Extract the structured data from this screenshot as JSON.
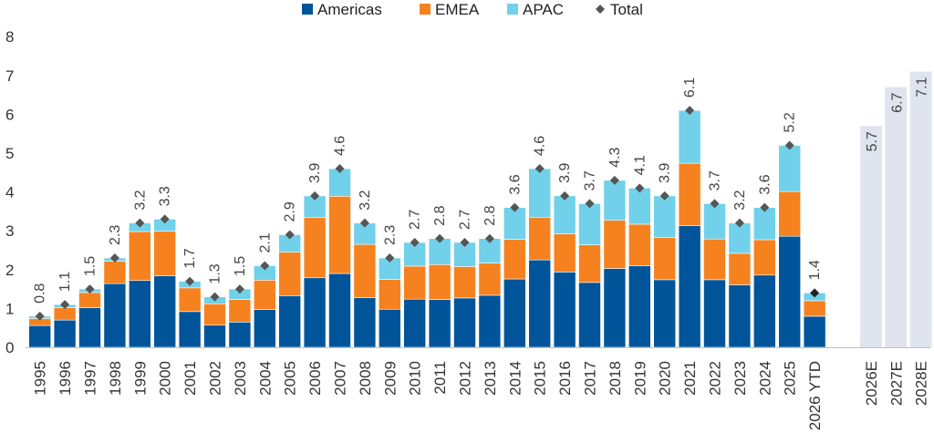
{
  "chart_data": {
    "type": "bar",
    "stacked": true,
    "legend": {
      "position": "top-center"
    },
    "grid": false,
    "ylim": [
      0,
      8
    ],
    "yticks": [
      "0",
      "1",
      "2",
      "3",
      "4",
      "5",
      "6",
      "7",
      "8"
    ],
    "series": [
      {
        "name": "Americas",
        "color": "#00549A",
        "values": [
          0.56,
          0.7,
          1.02,
          1.64,
          1.72,
          1.84,
          0.92,
          0.57,
          0.65,
          0.97,
          1.33,
          1.79,
          1.9,
          1.28,
          0.98,
          1.24,
          1.23,
          1.27,
          1.34,
          1.76,
          2.25,
          1.94,
          1.67,
          2.03,
          2.1,
          1.74,
          3.13,
          1.74,
          1.61,
          1.86,
          2.86,
          0.8
        ]
      },
      {
        "name": "EMEA",
        "color": "#F5821F",
        "values": [
          0.18,
          0.32,
          0.39,
          0.58,
          1.26,
          1.15,
          0.61,
          0.55,
          0.58,
          0.76,
          1.12,
          1.55,
          1.99,
          1.37,
          0.77,
          0.85,
          0.9,
          0.81,
          0.83,
          1.02,
          1.1,
          0.98,
          0.97,
          1.24,
          1.07,
          1.09,
          1.61,
          1.05,
          0.81,
          0.91,
          1.15,
          0.4
        ]
      },
      {
        "name": "APAC",
        "color": "#71D0EA",
        "values": [
          0.06,
          0.08,
          0.09,
          0.08,
          0.22,
          0.31,
          0.17,
          0.18,
          0.27,
          0.37,
          0.45,
          0.56,
          0.71,
          0.55,
          0.55,
          0.61,
          0.67,
          0.62,
          0.63,
          0.82,
          1.25,
          0.98,
          1.06,
          1.03,
          0.93,
          1.07,
          1.36,
          0.91,
          0.78,
          0.83,
          1.19,
          0.2
        ]
      },
      {
        "name": "Total",
        "marker": "diamond",
        "color": "#555555",
        "values": [
          0.8,
          1.1,
          1.5,
          2.3,
          3.2,
          3.3,
          1.7,
          1.3,
          1.5,
          2.1,
          2.9,
          3.9,
          4.6,
          3.2,
          2.3,
          2.7,
          2.8,
          2.7,
          2.8,
          3.6,
          4.6,
          3.9,
          3.7,
          4.3,
          4.1,
          3.9,
          6.1,
          3.7,
          3.2,
          3.6,
          5.2,
          1.4
        ]
      }
    ],
    "categories": [
      "1995",
      "1996",
      "1997",
      "1998",
      "1999",
      "2000",
      "2001",
      "2002",
      "2003",
      "2004",
      "2005",
      "2006",
      "2007",
      "2008",
      "2009",
      "2010",
      "2011",
      "2012",
      "2013",
      "2014",
      "2015",
      "2016",
      "2017",
      "2018",
      "2019",
      "2020",
      "2021",
      "2022",
      "2023",
      "2024",
      "2025",
      "2026 YTD"
    ],
    "total_labels": [
      "0.8",
      "1.1",
      "1.5",
      "2.3",
      "3.2",
      "3.3",
      "1.7",
      "1.3",
      "1.5",
      "2.1",
      "2.9",
      "3.9",
      "4.6",
      "3.2",
      "2.3",
      "2.7",
      "2.8",
      "2.7",
      "2.8",
      "3.6",
      "4.6",
      "3.9",
      "3.7",
      "4.3",
      "4.1",
      "3.9",
      "6.1",
      "3.7",
      "3.2",
      "3.6",
      "5.2",
      "1.4"
    ],
    "estimates": {
      "color": "#DFE4EE",
      "categories": [
        "2026E",
        "2027E",
        "2028E"
      ],
      "values": [
        5.7,
        6.7,
        7.1
      ],
      "labels": [
        "5.7",
        "6.7",
        "7.1"
      ]
    }
  }
}
